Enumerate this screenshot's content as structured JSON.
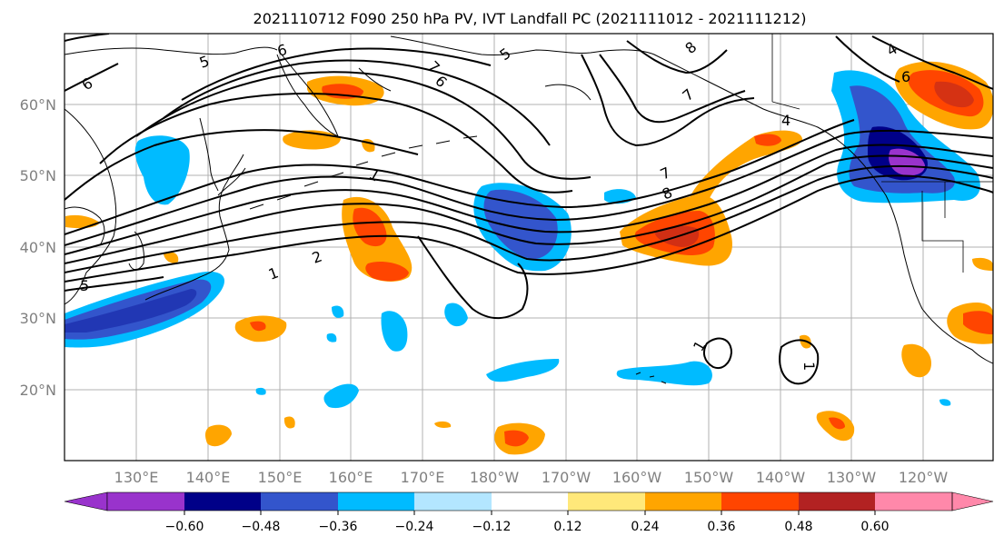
{
  "title": "2021110712 F090 250 hPa PV, IVT Landfall PC (2021111012 - 2021111212)",
  "map": {
    "lat_labels": [
      "60°N",
      "50°N",
      "40°N",
      "30°N",
      "20°N"
    ],
    "lon_labels": [
      "130°E",
      "140°E",
      "150°E",
      "160°E",
      "170°E",
      "180°W",
      "170°W",
      "160°W",
      "150°W",
      "140°W",
      "130°W",
      "120°W"
    ],
    "contour_labels": [
      "6",
      "5",
      "6",
      "7",
      "6",
      "5",
      "8",
      "7",
      "4",
      "1",
      "7",
      "8",
      "5",
      "2",
      "1",
      "1",
      "1",
      "4",
      "6"
    ],
    "colors": {
      "land_outline": "#000000",
      "grid": "#b0b0b0",
      "tick_label": "#808080"
    }
  },
  "colorbar": {
    "tick_labels": [
      "−0.60",
      "−0.48",
      "−0.36",
      "−0.24",
      "−0.12",
      "0.12",
      "0.24",
      "0.36",
      "0.48",
      "0.60"
    ],
    "levels": [
      -0.6,
      -0.48,
      -0.36,
      -0.24,
      -0.12,
      0.12,
      0.24,
      0.36,
      0.48,
      0.6
    ],
    "colors": [
      "#9933cc",
      "#000088",
      "#3355cc",
      "#00bbff",
      "#b3e6ff",
      "#ffffff",
      "#ffe87a",
      "#ffa500",
      "#ff4500",
      "#b22222",
      "#ff88aa"
    ]
  }
}
